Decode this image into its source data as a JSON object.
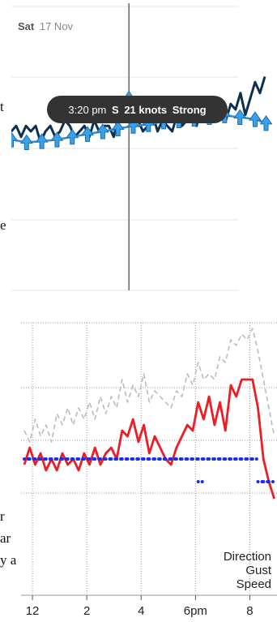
{
  "fragments": [
    "t",
    "e",
    "r",
    "ar",
    "y a"
  ],
  "chart_data": [
    {
      "type": "line",
      "date_label_day": "Sat",
      "date_label_date": "17 Nov",
      "tooltip": {
        "time": "3:20 pm",
        "direction": "S",
        "speed": "21 knots",
        "strength": "Strong"
      },
      "cursor_time": 15.33,
      "x_range": [
        13.4,
        17.6
      ],
      "y_range": [
        0,
        40
      ],
      "series": [
        {
          "role": "gust",
          "color": "#0e3050",
          "x": [
            13.4,
            13.48,
            13.56,
            13.64,
            13.72,
            13.8,
            13.88,
            13.96,
            14.04,
            14.12,
            14.2,
            14.28,
            14.36,
            14.44,
            14.52,
            14.6,
            14.68,
            14.76,
            14.84,
            14.92,
            15.0,
            15.08,
            15.16,
            15.24,
            15.32,
            15.4,
            15.48,
            15.56,
            15.64,
            15.72,
            15.8,
            15.88,
            15.96,
            16.04,
            16.12,
            16.2,
            16.28,
            16.36,
            16.44,
            16.52,
            16.6,
            16.68,
            16.76,
            16.84,
            16.92,
            17.0,
            17.08,
            17.16,
            17.24,
            17.32,
            17.4,
            17.48,
            17.56
          ],
          "values": [
            16,
            17,
            15,
            17,
            16,
            17,
            14,
            16,
            17,
            15,
            16,
            18,
            17,
            15,
            16,
            17,
            15,
            18,
            16,
            17,
            17,
            15,
            19,
            18,
            21,
            17,
            18,
            16,
            17,
            19,
            16,
            18,
            17,
            16,
            19,
            17,
            18,
            20,
            17,
            21,
            19,
            22,
            20,
            21,
            18,
            21,
            20,
            23,
            19,
            22,
            25,
            23,
            26
          ]
        },
        {
          "role": "speed",
          "color": "#2e8fd6",
          "x": [
            13.4,
            13.65,
            13.9,
            14.15,
            14.4,
            14.65,
            14.9,
            15.15,
            15.4,
            15.65,
            15.9,
            16.15,
            16.4,
            16.65,
            16.9,
            17.15,
            17.4,
            17.58
          ],
          "values": [
            14.5,
            14,
            14.2,
            14.5,
            15,
            15.5,
            16,
            16.5,
            17,
            17.3,
            17.8,
            18,
            18.3,
            18.6,
            18.9,
            18.6,
            18.2,
            17.5
          ],
          "arrow_direction_deg": 0
        }
      ]
    },
    {
      "type": "line",
      "legend_direction": "Direction",
      "legend_gust": "Gust",
      "legend_speed": "Speed",
      "ticks": [
        {
          "label": "12",
          "x": 12
        },
        {
          "label": "2",
          "x": 14
        },
        {
          "label": "4",
          "x": 16
        },
        {
          "label": "6pm",
          "x": 18
        },
        {
          "label": "8",
          "x": 20
        }
      ],
      "x_range": [
        11.7,
        21.0
      ],
      "y_range": [
        0,
        40
      ],
      "series": [
        {
          "role": "gust",
          "color": "#bbbbbb",
          "x": [
            11.7,
            11.9,
            12.1,
            12.3,
            12.5,
            12.7,
            12.9,
            13.1,
            13.3,
            13.5,
            13.7,
            13.9,
            14.1,
            14.3,
            14.5,
            14.7,
            14.9,
            15.1,
            15.3,
            15.5,
            15.7,
            15.9,
            16.1,
            16.3,
            16.5,
            16.7,
            16.9,
            17.1,
            17.3,
            17.5,
            17.7,
            17.9,
            18.1,
            18.3,
            18.5,
            18.7,
            18.9,
            19.1,
            19.3,
            19.5,
            19.7,
            19.9,
            20.1,
            20.3,
            20.5,
            20.7,
            20.9
          ],
          "values": [
            21,
            19,
            23,
            20,
            22,
            19,
            24,
            22,
            25,
            22,
            25,
            23,
            26,
            23,
            27,
            24,
            27,
            25,
            30,
            26,
            29,
            27,
            31,
            26,
            28,
            27,
            26,
            25,
            28,
            27,
            31,
            29,
            33,
            30,
            31,
            30,
            34,
            33,
            37,
            36,
            38,
            37,
            39,
            35,
            30,
            25,
            20
          ]
        },
        {
          "role": "speed",
          "color": "#ee1c25",
          "x": [
            11.7,
            11.9,
            12.1,
            12.3,
            12.5,
            12.7,
            12.9,
            13.1,
            13.3,
            13.5,
            13.7,
            13.9,
            14.1,
            14.3,
            14.5,
            14.7,
            14.9,
            15.1,
            15.3,
            15.5,
            15.7,
            15.9,
            16.1,
            16.3,
            16.5,
            16.7,
            16.9,
            17.1,
            17.3,
            17.5,
            17.7,
            17.9,
            18.1,
            18.3,
            18.5,
            18.7,
            18.9,
            19.1,
            19.3,
            19.5,
            19.7,
            19.9,
            20.1,
            20.3,
            20.5,
            20.7,
            20.9
          ],
          "values": [
            15,
            18,
            15,
            17,
            14,
            16,
            14,
            17,
            15,
            16,
            14,
            17,
            15,
            18,
            15,
            17,
            18,
            16,
            21,
            20,
            23,
            19,
            22,
            17,
            20,
            18,
            16,
            15,
            18,
            20,
            22,
            21,
            26,
            23,
            27,
            22,
            26,
            21,
            29,
            27,
            30,
            30,
            30,
            25,
            16,
            12,
            9
          ]
        },
        {
          "role": "direction",
          "color": "#1a2cf0",
          "x": [
            11.7,
            11.9,
            12.1,
            12.3,
            12.5,
            12.7,
            12.9,
            13.1,
            13.3,
            13.5,
            13.7,
            13.9,
            14.1,
            14.3,
            14.5,
            14.7,
            14.9,
            15.1,
            15.3,
            15.5,
            15.7,
            15.9,
            16.1,
            16.3,
            16.5,
            16.7,
            16.9,
            17.1,
            17.3,
            17.5,
            17.7,
            17.9,
            18.1,
            18.3,
            18.5,
            18.7,
            18.9,
            19.1,
            19.3,
            19.5,
            19.7,
            19.9,
            20.1,
            20.3,
            20.5,
            20.7,
            20.9
          ],
          "values": [
            16,
            16,
            16,
            16,
            16,
            16,
            16,
            16,
            16,
            16,
            16,
            16,
            16,
            16,
            16,
            16,
            16,
            16,
            16,
            16,
            16,
            16,
            16,
            16,
            16,
            16,
            16,
            16,
            16,
            16,
            16,
            16,
            16,
            16,
            16,
            16,
            16,
            16,
            16,
            16,
            16,
            16,
            16,
            12,
            12,
            12,
            12
          ]
        }
      ]
    }
  ]
}
